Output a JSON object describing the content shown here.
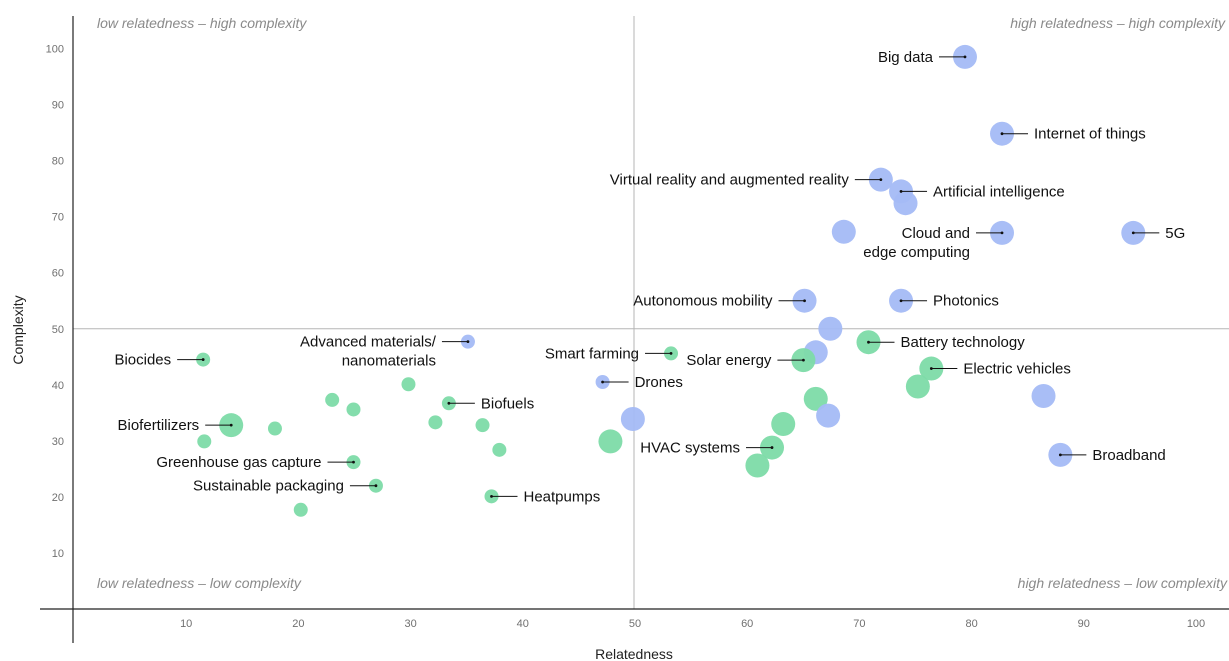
{
  "chart_data": {
    "type": "scatter",
    "xlabel": "Relatedness",
    "ylabel": "Complexity",
    "xlim": [
      0,
      100
    ],
    "ylim": [
      0,
      103
    ],
    "x_ticks": [
      10,
      20,
      30,
      40,
      50,
      60,
      70,
      80,
      90,
      100
    ],
    "y_ticks": [
      10,
      20,
      30,
      40,
      50,
      60,
      70,
      80,
      90,
      100
    ],
    "divider_x": 50,
    "divider_y": 50,
    "grid": false,
    "quadrant_labels": {
      "top_left": "low relatedness – high complexity",
      "top_right": "high relatedness – high complexity",
      "bottom_left": "low relatedness – low complexity",
      "bottom_right": "high relatedness – low complexity"
    },
    "colors": {
      "blue": "#a4bbf6",
      "green": "#7ddba8"
    },
    "points": [
      {
        "x": 79.5,
        "y": 98.5,
        "size": 12,
        "color": "blue",
        "label": "Big data",
        "side": "left"
      },
      {
        "x": 82.8,
        "y": 84.8,
        "size": 12,
        "color": "blue",
        "label": "Internet of things",
        "side": "right"
      },
      {
        "x": 72.0,
        "y": 76.6,
        "size": 12,
        "color": "blue",
        "label": "Virtual reality and augmented reality",
        "side": "left"
      },
      {
        "x": 73.8,
        "y": 74.5,
        "size": 12,
        "color": "blue",
        "label": "Artificial intelligence",
        "side": "right"
      },
      {
        "x": 74.2,
        "y": 72.4,
        "size": 12,
        "color": "blue"
      },
      {
        "x": 68.7,
        "y": 67.3,
        "size": 12,
        "color": "blue"
      },
      {
        "x": 82.8,
        "y": 67.1,
        "size": 12,
        "color": "blue",
        "label": "Cloud and",
        "label2": "edge computing",
        "side": "left"
      },
      {
        "x": 94.5,
        "y": 67.1,
        "size": 12,
        "color": "blue",
        "label": "5G",
        "side": "right"
      },
      {
        "x": 65.2,
        "y": 55.0,
        "size": 12,
        "color": "blue",
        "label": "Autonomous mobility",
        "side": "left"
      },
      {
        "x": 73.8,
        "y": 55.0,
        "size": 12,
        "color": "blue",
        "label": "Photonics",
        "side": "right"
      },
      {
        "x": 67.5,
        "y": 50.0,
        "size": 12,
        "color": "blue"
      },
      {
        "x": 70.9,
        "y": 47.6,
        "size": 12,
        "color": "green",
        "label": "Battery technology",
        "side": "right"
      },
      {
        "x": 35.2,
        "y": 47.7,
        "size": 7,
        "color": "blue",
        "label": "Advanced materials/",
        "label2": "nanomaterials",
        "side": "left"
      },
      {
        "x": 53.3,
        "y": 45.6,
        "size": 7,
        "color": "green",
        "label": "Smart farming",
        "side": "left"
      },
      {
        "x": 66.2,
        "y": 45.8,
        "size": 12,
        "color": "blue"
      },
      {
        "x": 65.1,
        "y": 44.4,
        "size": 12,
        "color": "green",
        "label": "Solar energy",
        "side": "left"
      },
      {
        "x": 11.6,
        "y": 44.5,
        "size": 7,
        "color": "green",
        "label": "Biocides",
        "side": "left"
      },
      {
        "x": 76.5,
        "y": 42.9,
        "size": 12,
        "color": "green",
        "label": "Electric vehicles",
        "side": "right"
      },
      {
        "x": 47.2,
        "y": 40.5,
        "size": 7,
        "color": "blue",
        "label": "Drones",
        "side": "right"
      },
      {
        "x": 29.9,
        "y": 40.1,
        "size": 7,
        "color": "green"
      },
      {
        "x": 75.3,
        "y": 39.7,
        "size": 12,
        "color": "green"
      },
      {
        "x": 86.5,
        "y": 38.0,
        "size": 12,
        "color": "blue"
      },
      {
        "x": 66.2,
        "y": 37.5,
        "size": 12,
        "color": "green"
      },
      {
        "x": 23.1,
        "y": 37.3,
        "size": 7,
        "color": "green"
      },
      {
        "x": 33.5,
        "y": 36.7,
        "size": 7,
        "color": "green",
        "label": "Biofuels",
        "side": "right"
      },
      {
        "x": 25.0,
        "y": 35.6,
        "size": 7,
        "color": "green"
      },
      {
        "x": 67.3,
        "y": 34.5,
        "size": 12,
        "color": "blue"
      },
      {
        "x": 49.9,
        "y": 33.9,
        "size": 12,
        "color": "blue"
      },
      {
        "x": 32.3,
        "y": 33.3,
        "size": 7,
        "color": "green"
      },
      {
        "x": 63.3,
        "y": 33.0,
        "size": 12,
        "color": "green"
      },
      {
        "x": 14.1,
        "y": 32.8,
        "size": 12,
        "color": "green",
        "label": "Biofertilizers",
        "side": "left"
      },
      {
        "x": 36.5,
        "y": 32.8,
        "size": 7,
        "color": "green"
      },
      {
        "x": 18.0,
        "y": 32.2,
        "size": 7,
        "color": "green"
      },
      {
        "x": 11.7,
        "y": 29.9,
        "size": 7,
        "color": "green"
      },
      {
        "x": 47.9,
        "y": 29.9,
        "size": 12,
        "color": "green"
      },
      {
        "x": 62.3,
        "y": 28.8,
        "size": 12,
        "color": "green",
        "label": "HVAC systems",
        "side": "left"
      },
      {
        "x": 38.0,
        "y": 28.4,
        "size": 7,
        "color": "green"
      },
      {
        "x": 88.0,
        "y": 27.5,
        "size": 12,
        "color": "blue",
        "label": "Broadband",
        "side": "right"
      },
      {
        "x": 25.0,
        "y": 26.2,
        "size": 7,
        "color": "green",
        "label": "Greenhouse gas capture",
        "side": "left"
      },
      {
        "x": 61.0,
        "y": 25.6,
        "size": 12,
        "color": "green"
      },
      {
        "x": 27.0,
        "y": 22.0,
        "size": 7,
        "color": "green",
        "label": "Sustainable packaging",
        "side": "left"
      },
      {
        "x": 37.3,
        "y": 20.1,
        "size": 7,
        "color": "green",
        "label": "Heatpumps",
        "side": "right"
      },
      {
        "x": 20.3,
        "y": 17.7,
        "size": 7,
        "color": "green"
      }
    ]
  }
}
